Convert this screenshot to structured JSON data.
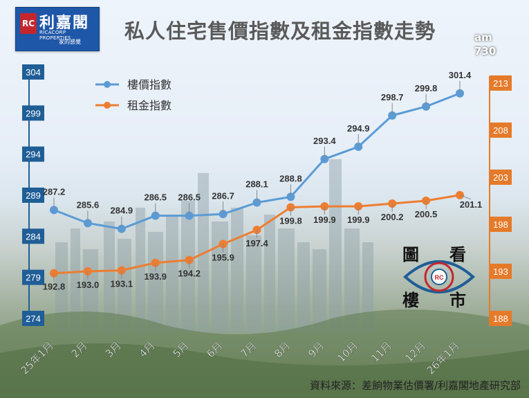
{
  "brand": {
    "mark": "RC",
    "name": "利嘉閣",
    "english": "RICACORP PROPERTIES",
    "tagline": "家的感覺"
  },
  "title": "私人住宅售價指數及租金指數走勢",
  "badge": [
    "am",
    "730"
  ],
  "source": "資料來源：差餉物業估價署/利嘉閣地產研究部",
  "stamp": {
    "tl": "圖",
    "tr": "看",
    "bl": "樓",
    "br": "市",
    "mark": "RC"
  },
  "colors": {
    "price_line": "#5b9bd5",
    "rent_line": "#ed7d31",
    "left_axis_box": "#1f5e96",
    "right_axis_box": "#e57a2a",
    "title": "#5a5a5a"
  },
  "chart_data": {
    "type": "line",
    "categories": [
      "25年1月",
      "2月",
      "3月",
      "4月",
      "5月",
      "6月",
      "7月",
      "8月",
      "9月",
      "10月",
      "11月",
      "12月",
      "26年1月"
    ],
    "series": [
      {
        "name": "樓價指數",
        "axis": "left",
        "values": [
          287.2,
          285.6,
          284.9,
          286.5,
          286.5,
          286.7,
          288.1,
          288.8,
          293.4,
          294.9,
          298.7,
          299.8,
          301.4
        ],
        "labels": [
          "287.2",
          "285.6",
          "284.9",
          "286.5",
          "286.5",
          "286.7",
          "288.1",
          "288.8",
          "293.4",
          "294.9",
          "298.7",
          "299.8",
          "301.4"
        ]
      },
      {
        "name": "租金指數",
        "axis": "right",
        "values": [
          192.8,
          193.0,
          193.1,
          193.9,
          194.2,
          195.9,
          197.4,
          199.8,
          199.9,
          199.9,
          200.2,
          200.5,
          201.1
        ],
        "labels": [
          "192.8",
          "193.0",
          "193.1",
          "193.9",
          "194.2",
          "195.9",
          "197.4",
          "199.8",
          "199.9",
          "199.9",
          "200.2",
          "200.5",
          "201.1"
        ]
      }
    ],
    "left_axis": {
      "ylim": [
        274,
        304
      ],
      "ticks": [
        "304",
        "299",
        "294",
        "289",
        "284",
        "279",
        "274"
      ]
    },
    "right_axis": {
      "ylim": [
        188,
        213
      ],
      "ticks": [
        "213",
        "208",
        "203",
        "198",
        "193",
        "188"
      ]
    },
    "grid": false,
    "legend": "top-left"
  }
}
